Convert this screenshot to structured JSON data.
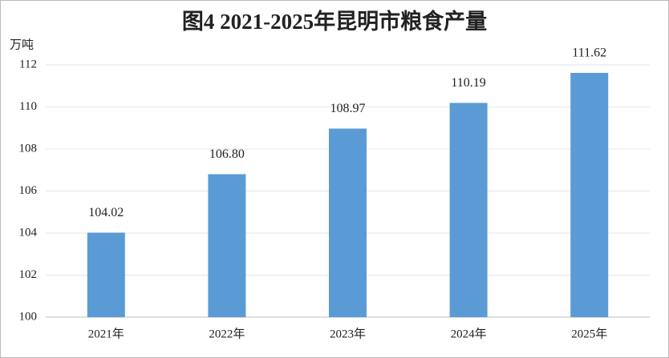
{
  "chart_data": {
    "type": "bar",
    "title": "图4 2021-2025年昆明市粮食产量",
    "y_label": "万吨",
    "categories": [
      "2021年",
      "2022年",
      "2023年",
      "2024年",
      "2025年"
    ],
    "values": [
      104.02,
      106.8,
      108.97,
      110.19,
      111.62
    ],
    "value_labels": [
      "104.02",
      "106.80",
      "108.97",
      "110.19",
      "111.62"
    ],
    "color": "#5b9bd5",
    "ylim": [
      100,
      112
    ],
    "yticks": [
      100,
      102,
      104,
      106,
      108,
      110,
      112
    ],
    "grid": true
  }
}
